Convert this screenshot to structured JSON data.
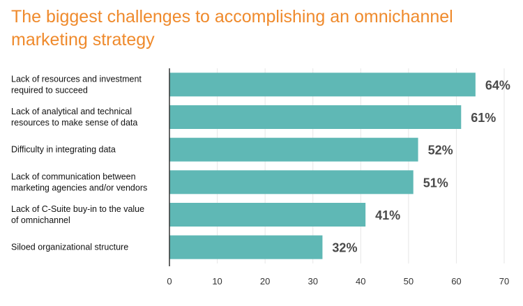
{
  "chart_data": {
    "type": "bar",
    "orientation": "horizontal",
    "title": "The biggest challenges to accomplishing an omnichannel marketing strategy",
    "categories": [
      [
        "Lack of resources and investment",
        "required to succeed"
      ],
      [
        "Lack of analytical and technical",
        "resources to make sense of data"
      ],
      [
        "Difficulty in integrating data"
      ],
      [
        "Lack of communication between",
        "marketing agencies and/or vendors"
      ],
      [
        "Lack of C-Suite buy-in to the value",
        "of omnichannel"
      ],
      [
        "Siloed organizational structure"
      ]
    ],
    "values": [
      64,
      61,
      52,
      51,
      41,
      32
    ],
    "value_labels": [
      "64%",
      "61%",
      "52%",
      "51%",
      "41%",
      "32%"
    ],
    "xlim": [
      0,
      70
    ],
    "xticks": [
      0,
      10,
      20,
      30,
      40,
      50,
      60,
      70
    ],
    "grid": true,
    "colors": {
      "bar": "#5fb8b5",
      "title": "#ef8a2c",
      "value_label": "#4a4a4a",
      "grid": "#e6e6e6"
    }
  }
}
